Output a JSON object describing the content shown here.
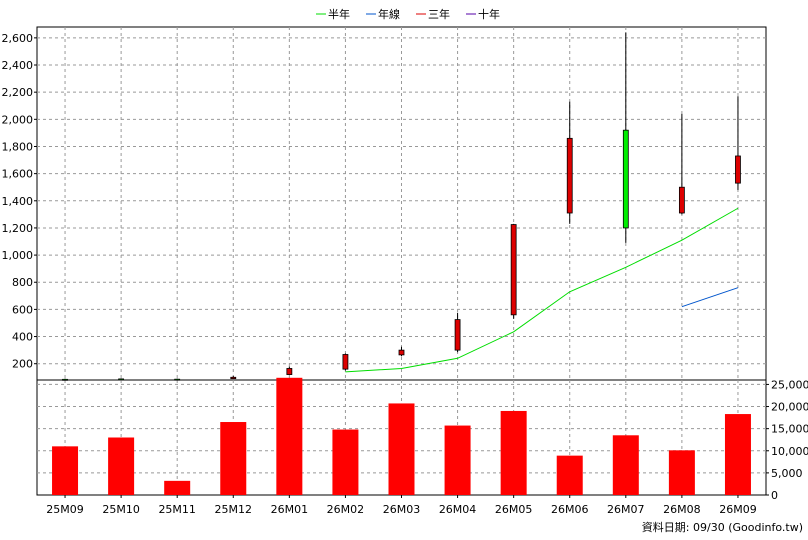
{
  "source_note": "資料日期: 09/30  (Goodinfo.tw)",
  "chart_data": {
    "type": "candlestick+line+bar",
    "categories": [
      "25M09",
      "25M10",
      "25M11",
      "25M12",
      "26M01",
      "26M02",
      "26M03",
      "26M04",
      "26M05",
      "26M06",
      "26M07",
      "26M08",
      "26M09"
    ],
    "legend": [
      {
        "name": "半年",
        "color": "#00dd00"
      },
      {
        "name": "年線",
        "color": "#0055cc"
      },
      {
        "name": "三年",
        "color": "#dd0000"
      },
      {
        "name": "十年",
        "color": "#5500aa"
      }
    ],
    "price_axis": {
      "ylim": [
        80,
        2680
      ],
      "ticks": [
        200,
        400,
        600,
        800,
        1000,
        1200,
        1400,
        1600,
        1800,
        2000,
        2200,
        2400,
        2600
      ]
    },
    "volume_axis": {
      "ylim": [
        0,
        26000
      ],
      "ticks": [
        0,
        5000,
        10000,
        15000,
        20000,
        25000
      ]
    },
    "candles": [
      {
        "open": 85,
        "high": 90,
        "low": 80,
        "close": 85
      },
      {
        "open": 88,
        "high": 92,
        "low": 84,
        "close": 88
      },
      {
        "open": 86,
        "high": 90,
        "low": 82,
        "close": 86
      },
      {
        "open": 100,
        "high": 110,
        "low": 90,
        "close": 90
      },
      {
        "open": 165,
        "high": 180,
        "low": 135,
        "close": 120
      },
      {
        "open": 268,
        "high": 275,
        "low": 150,
        "close": 160
      },
      {
        "open": 300,
        "high": 325,
        "low": 255,
        "close": 265
      },
      {
        "open": 525,
        "high": 575,
        "low": 285,
        "close": 300
      },
      {
        "open": 1225,
        "high": 1230,
        "low": 530,
        "close": 560
      },
      {
        "open": 1860,
        "high": 2130,
        "low": 1230,
        "close": 1310
      },
      {
        "open": 1200,
        "high": 2640,
        "low": 1090,
        "close": 1920
      },
      {
        "open": 1500,
        "high": 2040,
        "low": 1300,
        "close": 1310
      },
      {
        "open": 1730,
        "high": 2170,
        "low": 1480,
        "close": 1530
      }
    ],
    "series": [
      {
        "name": "半年",
        "values": [
          null,
          null,
          null,
          null,
          null,
          140,
          165,
          240,
          435,
          730,
          910,
          1110,
          1345
        ]
      },
      {
        "name": "年線",
        "values": [
          null,
          null,
          null,
          null,
          null,
          null,
          null,
          null,
          null,
          null,
          null,
          620,
          760
        ]
      }
    ],
    "volume": [
      11000,
      13000,
      3200,
      16500,
      26500,
      14800,
      20700,
      15700,
      19000,
      8900,
      13500,
      10100,
      18300
    ]
  }
}
